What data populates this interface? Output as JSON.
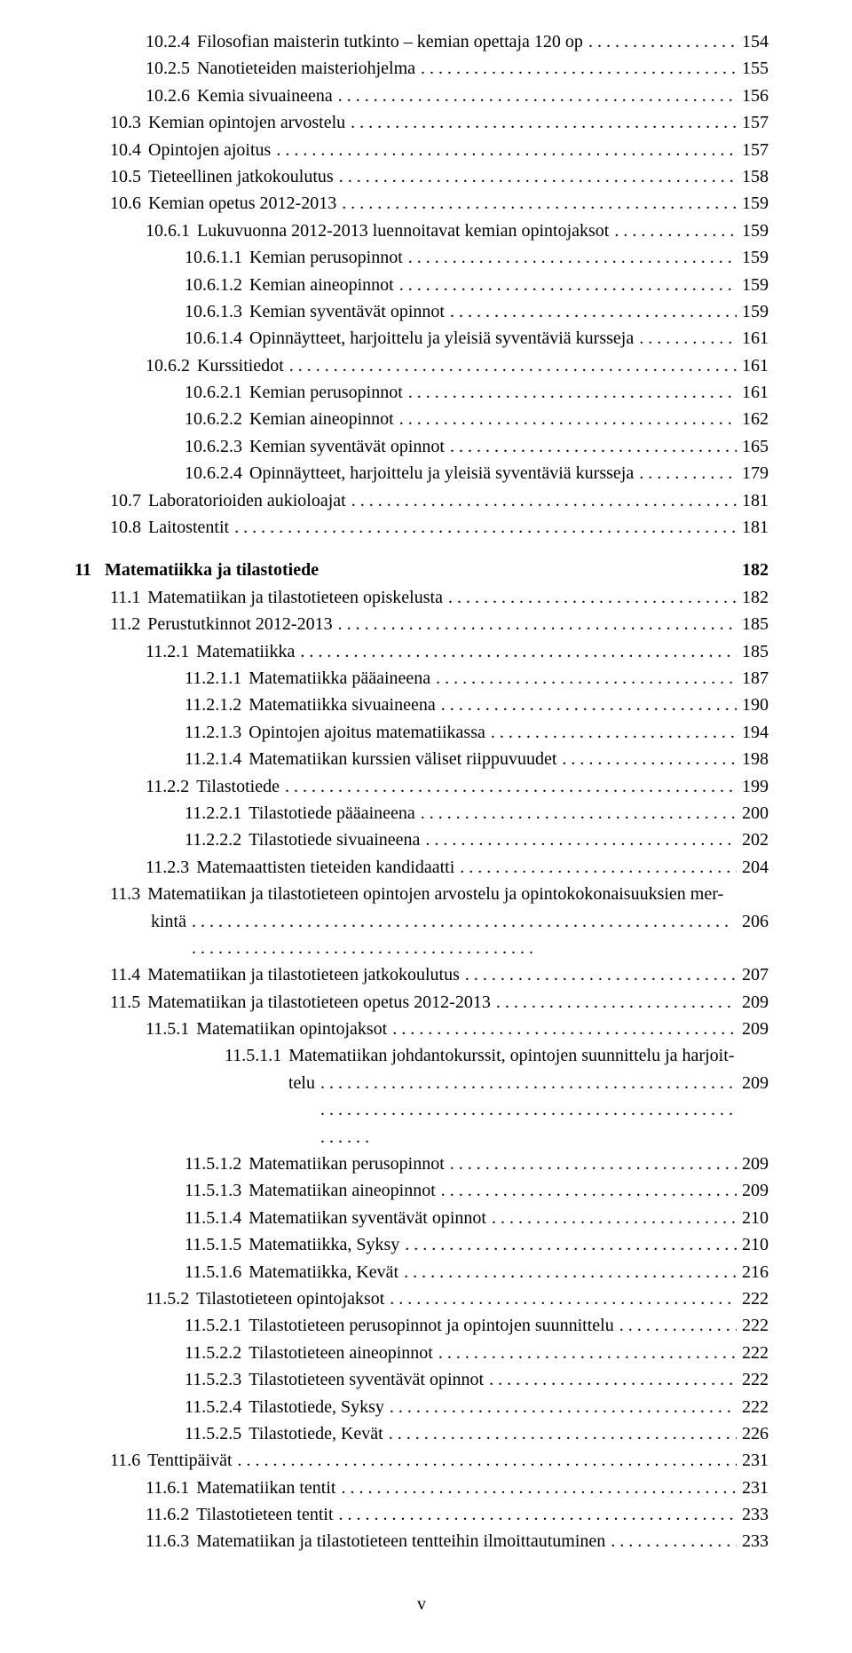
{
  "toc": [
    {
      "indent": 1,
      "num": "10.2.4",
      "title": "Filosofian maisterin tutkinto – kemian opettaja 120 op",
      "page": "154"
    },
    {
      "indent": 1,
      "num": "10.2.5",
      "title": "Nanotieteiden maisteriohjelma",
      "page": "155"
    },
    {
      "indent": 1,
      "num": "10.2.6",
      "title": "Kemia sivuaineena",
      "page": "156"
    },
    {
      "indent": 0,
      "num": "10.3",
      "title": "Kemian opintojen arvostelu",
      "page": "157"
    },
    {
      "indent": 0,
      "num": "10.4",
      "title": "Opintojen ajoitus",
      "page": "157"
    },
    {
      "indent": 0,
      "num": "10.5",
      "title": "Tieteellinen jatkokoulutus",
      "page": "158"
    },
    {
      "indent": 0,
      "num": "10.6",
      "title": "Kemian opetus 2012-2013",
      "page": "159"
    },
    {
      "indent": 1,
      "num": "10.6.1",
      "title": "Lukuvuonna 2012-2013 luennoitavat kemian opintojaksot",
      "page": "159"
    },
    {
      "indent": 2,
      "num": "10.6.1.1",
      "title": "Kemian perusopinnot",
      "page": "159"
    },
    {
      "indent": 2,
      "num": "10.6.1.2",
      "title": "Kemian aineopinnot",
      "page": "159"
    },
    {
      "indent": 2,
      "num": "10.6.1.3",
      "title": "Kemian syventävät opinnot",
      "page": "159"
    },
    {
      "indent": 2,
      "num": "10.6.1.4",
      "title": "Opinnäytteet, harjoittelu ja yleisiä syventäviä kursseja",
      "page": "161"
    },
    {
      "indent": 1,
      "num": "10.6.2",
      "title": "Kurssitiedot",
      "page": "161"
    },
    {
      "indent": 2,
      "num": "10.6.2.1",
      "title": "Kemian perusopinnot",
      "page": "161"
    },
    {
      "indent": 2,
      "num": "10.6.2.2",
      "title": "Kemian aineopinnot",
      "page": "162"
    },
    {
      "indent": 2,
      "num": "10.6.2.3",
      "title": "Kemian syventävät opinnot",
      "page": "165"
    },
    {
      "indent": 2,
      "num": "10.6.2.4",
      "title": "Opinnäytteet, harjoittelu ja yleisiä syventäviä kursseja",
      "page": "179"
    },
    {
      "indent": 0,
      "num": "10.7",
      "title": "Laboratorioiden aukioloajat",
      "page": "181"
    },
    {
      "indent": 0,
      "num": "10.8",
      "title": "Laitostentit",
      "page": "181"
    }
  ],
  "chapter": {
    "num": "11",
    "title": "Matematiikka ja tilastotiede",
    "page": "182"
  },
  "toc2": [
    {
      "indent": 0,
      "num": "11.1",
      "title": "Matematiikan ja tilastotieteen opiskelusta",
      "page": "182"
    },
    {
      "indent": 0,
      "num": "11.2",
      "title": "Perustutkinnot 2012-2013",
      "page": "185"
    },
    {
      "indent": 1,
      "num": "11.2.1",
      "title": "Matematiikka",
      "page": "185"
    },
    {
      "indent": 2,
      "num": "11.2.1.1",
      "title": "Matematiikka pääaineena",
      "page": "187"
    },
    {
      "indent": 2,
      "num": "11.2.1.2",
      "title": "Matematiikka sivuaineena",
      "page": "190"
    },
    {
      "indent": 2,
      "num": "11.2.1.3",
      "title": "Opintojen ajoitus matematiikassa",
      "page": "194"
    },
    {
      "indent": 2,
      "num": "11.2.1.4",
      "title": "Matematiikan kurssien väliset riippuvuudet",
      "page": "198"
    },
    {
      "indent": 1,
      "num": "11.2.2",
      "title": "Tilastotiede",
      "page": "199"
    },
    {
      "indent": 2,
      "num": "11.2.2.1",
      "title": "Tilastotiede pääaineena",
      "page": "200"
    },
    {
      "indent": 2,
      "num": "11.2.2.2",
      "title": "Tilastotiede sivuaineena",
      "page": "202"
    },
    {
      "indent": 1,
      "num": "11.2.3",
      "title": "Matemaattisten tieteiden kandidaatti",
      "page": "204"
    }
  ],
  "entry113": {
    "num": "11.3",
    "title": "Matematiikan ja tilastotieteen opintojen arvostelu ja opintokokonaisuuksien mer-",
    "title2": "kintä",
    "page": "206"
  },
  "toc3": [
    {
      "indent": 0,
      "num": "11.4",
      "title": "Matematiikan ja tilastotieteen jatkokoulutus",
      "page": "207"
    },
    {
      "indent": 0,
      "num": "11.5",
      "title": "Matematiikan ja tilastotieteen opetus 2012-2013",
      "page": "209"
    },
    {
      "indent": 1,
      "num": "11.5.1",
      "title": "Matematiikan opintojaksot",
      "page": "209"
    }
  ],
  "entry11511": {
    "num": "11.5.1.1",
    "title": "Matematiikan johdantokurssit, opintojen suunnittelu ja harjoit-",
    "title2": "telu",
    "page": "209"
  },
  "toc4": [
    {
      "indent": 2,
      "num": "11.5.1.2",
      "title": "Matematiikan perusopinnot",
      "page": "209"
    },
    {
      "indent": 2,
      "num": "11.5.1.3",
      "title": "Matematiikan aineopinnot",
      "page": "209"
    },
    {
      "indent": 2,
      "num": "11.5.1.4",
      "title": "Matematiikan syventävät opinnot",
      "page": "210"
    },
    {
      "indent": 2,
      "num": "11.5.1.5",
      "title": "Matematiikka, Syksy",
      "page": "210"
    },
    {
      "indent": 2,
      "num": "11.5.1.6",
      "title": "Matematiikka, Kevät",
      "page": "216"
    },
    {
      "indent": 1,
      "num": "11.5.2",
      "title": "Tilastotieteen opintojaksot",
      "page": "222"
    },
    {
      "indent": 2,
      "num": "11.5.2.1",
      "title": "Tilastotieteen perusopinnot ja opintojen suunnittelu",
      "page": "222"
    },
    {
      "indent": 2,
      "num": "11.5.2.2",
      "title": "Tilastotieteen aineopinnot",
      "page": "222"
    },
    {
      "indent": 2,
      "num": "11.5.2.3",
      "title": "Tilastotieteen syventävät opinnot",
      "page": "222"
    },
    {
      "indent": 2,
      "num": "11.5.2.4",
      "title": "Tilastotiede, Syksy",
      "page": "222"
    },
    {
      "indent": 2,
      "num": "11.5.2.5",
      "title": "Tilastotiede, Kevät",
      "page": "226"
    },
    {
      "indent": 0,
      "num": "11.6",
      "title": "Tenttipäivät",
      "page": "231"
    },
    {
      "indent": 1,
      "num": "11.6.1",
      "title": "Matematiikan tentit",
      "page": "231"
    },
    {
      "indent": 1,
      "num": "11.6.2",
      "title": "Tilastotieteen tentit",
      "page": "233"
    },
    {
      "indent": 1,
      "num": "11.6.3",
      "title": "Matematiikan ja tilastotieteen tentteihin ilmoittautuminen",
      "page": "233"
    }
  ],
  "footer": "v"
}
